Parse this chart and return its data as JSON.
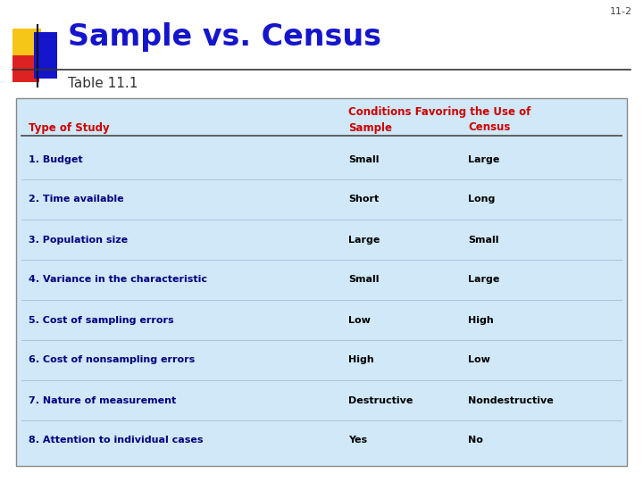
{
  "slide_number": "11-2",
  "title": "Sample vs. Census",
  "subtitle": "Table 11.1",
  "title_color": "#1515CC",
  "subtitle_color": "#333333",
  "table_bg": "#d0e8f8",
  "header_color": "#CC0000",
  "row_label_color": "#000080",
  "row_value_color": "#000000",
  "header_row1": "Conditions Favoring the Use of",
  "header_col1": "Type of Study",
  "header_col2": "Sample",
  "header_col3": "Census",
  "rows": [
    [
      "1. Budget",
      "Small",
      "Large"
    ],
    [
      "2. Time available",
      "Short",
      "Long"
    ],
    [
      "3. Population size",
      "Large",
      "Small"
    ],
    [
      "4. Variance in the characteristic",
      "Small",
      "Large"
    ],
    [
      "5. Cost of sampling errors",
      "Low",
      "High"
    ],
    [
      "6. Cost of nonsampling errors",
      "High",
      "Low"
    ],
    [
      "7. Nature of measurement",
      "Destructive",
      "Nondestructive"
    ],
    [
      "8. Attention to individual cases",
      "Yes",
      "No"
    ]
  ],
  "bg_color": "#ffffff",
  "logo_yellow": "#F5C518",
  "logo_red": "#DD2222",
  "logo_blue": "#1515CC"
}
